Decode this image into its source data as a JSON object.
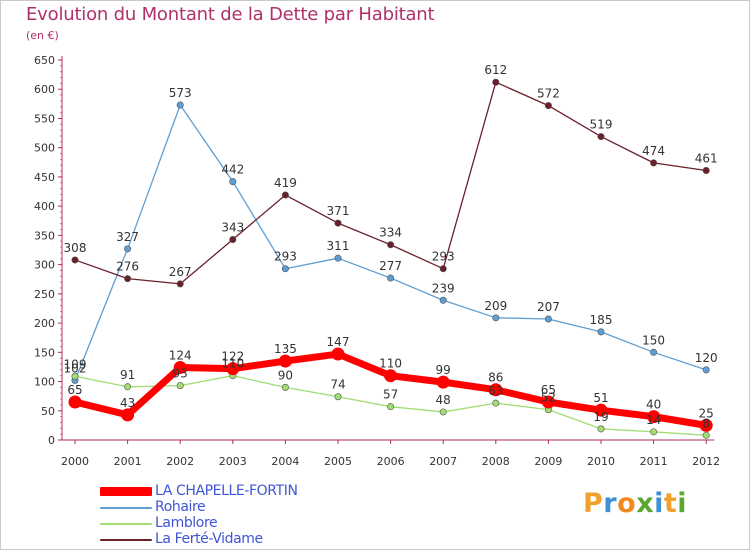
{
  "title": "Evolution du Montant de la Dette par Habitant",
  "subtitle": "(en €)",
  "brand": {
    "text": "Proxiti",
    "letters": [
      {
        "ch": "P",
        "color": "#f0a22d"
      },
      {
        "ch": "r",
        "color": "#3d8fd6"
      },
      {
        "ch": "o",
        "color": "#f08a1e"
      },
      {
        "ch": "x",
        "color": "#5aa832"
      },
      {
        "ch": "i",
        "color": "#3d8fd6"
      },
      {
        "ch": "t",
        "color": "#f0a22d"
      },
      {
        "ch": "i",
        "color": "#5aa832"
      }
    ]
  },
  "chart_data": {
    "type": "line",
    "title": "Evolution du Montant de la Dette par Habitant",
    "ylabel": "(en €)",
    "x": [
      "2000",
      "2001",
      "2002",
      "2003",
      "2004",
      "2005",
      "2006",
      "2007",
      "2008",
      "2009",
      "2010",
      "2011",
      "2012"
    ],
    "ylim": [
      0,
      650
    ],
    "yticks": [
      0,
      50,
      100,
      150,
      200,
      250,
      300,
      350,
      400,
      450,
      500,
      550,
      600,
      650
    ],
    "grid": false,
    "legend_position": "bottom-left",
    "series": [
      {
        "name": "LA CHAPELLE-FORTIN",
        "color": "#ff0000",
        "emphasis": true,
        "values": [
          65,
          43,
          124,
          122,
          135,
          147,
          110,
          99,
          86,
          65,
          51,
          40,
          25
        ]
      },
      {
        "name": "Rohaire",
        "color": "#5e9ed3",
        "emphasis": false,
        "values": [
          102,
          327,
          573,
          442,
          293,
          311,
          277,
          239,
          209,
          207,
          185,
          150,
          120
        ]
      },
      {
        "name": "Lamblore",
        "color": "#a1dd73",
        "emphasis": false,
        "values": [
          109,
          91,
          93,
          110,
          90,
          74,
          57,
          48,
          63,
          52,
          19,
          14,
          8
        ]
      },
      {
        "name": "La Ferté-Vidame",
        "color": "#6b1f2b",
        "emphasis": false,
        "values": [
          308,
          276,
          267,
          343,
          419,
          371,
          334,
          293,
          612,
          572,
          519,
          474,
          461
        ]
      }
    ]
  }
}
